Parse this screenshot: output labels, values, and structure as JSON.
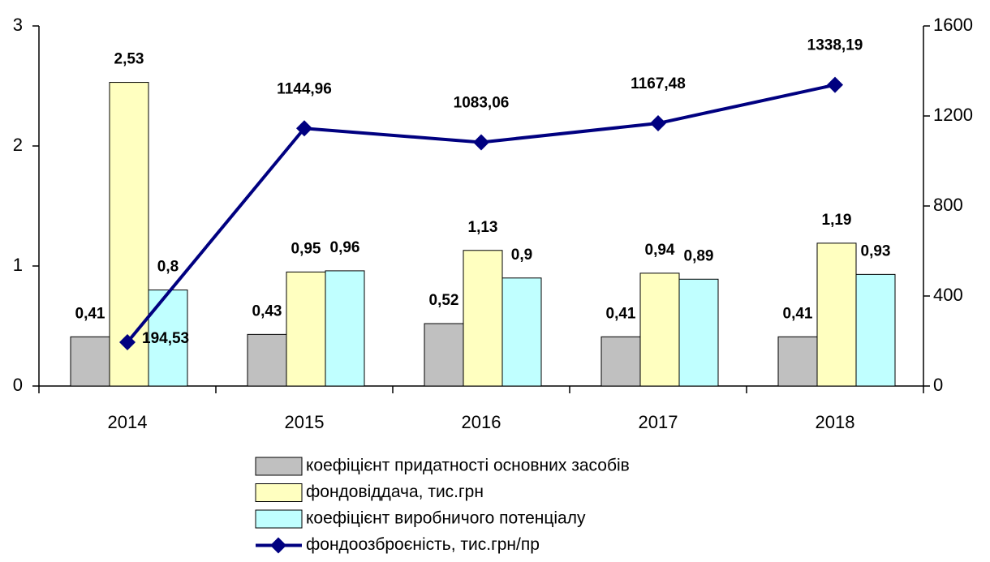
{
  "chart_data": {
    "type": "bar",
    "categories": [
      "2014",
      "2015",
      "2016",
      "2017",
      "2018"
    ],
    "series": [
      {
        "name": "коефіцієнт придатності основних засобів",
        "color": "#c0c0c0",
        "values": [
          0.41,
          0.43,
          0.52,
          0.41,
          0.41
        ],
        "value_labels": [
          "0,41",
          "0,43",
          "0,52",
          "0,41",
          "0,41"
        ]
      },
      {
        "name": "фондовіддача, тис.грн",
        "color": "#ffffc0",
        "values": [
          2.53,
          0.95,
          1.13,
          0.94,
          1.19
        ],
        "value_labels": [
          "2,53",
          "0,95",
          "1,13",
          "0,94",
          "1,19"
        ]
      },
      {
        "name": "коефіцієнт виробничого потенціалу",
        "color": "#c0ffff",
        "values": [
          0.8,
          0.96,
          0.9,
          0.89,
          0.93
        ],
        "value_labels": [
          "0,8",
          "0,96",
          "0,9",
          "0,89",
          "0,93"
        ]
      },
      {
        "name": "фондоозброєність, тис.грн/пр",
        "color": "#000080",
        "type": "line",
        "axis": "y2",
        "values": [
          194.53,
          1144.96,
          1083.06,
          1167.48,
          1338.19
        ],
        "value_labels": [
          "194,53",
          "1144,96",
          "1083,06",
          "1167,48",
          "1338,19"
        ]
      }
    ],
    "ylim": [
      0,
      3
    ],
    "yticks": [
      0,
      1,
      2,
      3
    ],
    "y2lim": [
      0,
      1600
    ],
    "y2ticks": [
      0,
      400,
      800,
      1200,
      1600
    ]
  }
}
